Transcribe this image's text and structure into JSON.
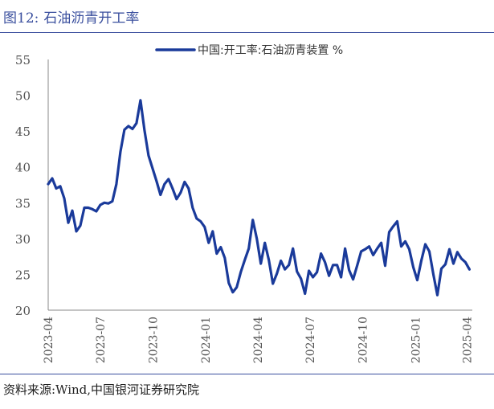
{
  "header": {
    "figure_label": "图12:",
    "figure_title": "石油沥青开工率"
  },
  "footer": {
    "source": "资料来源:Wind,中国银河证券研究院"
  },
  "colors": {
    "series": "#1a3a9a",
    "title": "#3a4f9e",
    "axis_text": "#555555"
  },
  "chart_data": {
    "type": "line",
    "title": "",
    "xlabel": "",
    "ylabel": "",
    "ylim": [
      20,
      55
    ],
    "yticks": [
      20,
      25,
      30,
      35,
      40,
      45,
      50,
      55
    ],
    "xlim": [
      "2023-04-01",
      "2025-04-10"
    ],
    "xticks": [
      "2023-04",
      "2023-07",
      "2023-10",
      "2024-01",
      "2024-04",
      "2024-07",
      "2024-10",
      "2025-01",
      "2025-04"
    ],
    "grid": false,
    "legend_position": "top-right",
    "series": [
      {
        "name": "中国:开工率:石油沥青装置 %",
        "x": [
          "2023-04-01",
          "2023-04-08",
          "2023-04-15",
          "2023-04-22",
          "2023-04-29",
          "2023-05-06",
          "2023-05-13",
          "2023-05-20",
          "2023-05-27",
          "2023-06-03",
          "2023-06-10",
          "2023-06-17",
          "2023-06-24",
          "2023-07-01",
          "2023-07-08",
          "2023-07-15",
          "2023-07-22",
          "2023-07-29",
          "2023-08-05",
          "2023-08-12",
          "2023-08-19",
          "2023-08-26",
          "2023-09-02",
          "2023-09-09",
          "2023-09-16",
          "2023-09-23",
          "2023-09-30",
          "2023-10-07",
          "2023-10-14",
          "2023-10-21",
          "2023-10-28",
          "2023-11-04",
          "2023-11-11",
          "2023-11-18",
          "2023-11-25",
          "2023-12-02",
          "2023-12-09",
          "2023-12-16",
          "2023-12-23",
          "2023-12-30",
          "2024-01-06",
          "2024-01-13",
          "2024-01-20",
          "2024-01-27",
          "2024-02-03",
          "2024-02-10",
          "2024-02-17",
          "2024-02-24",
          "2024-03-02",
          "2024-03-09",
          "2024-03-16",
          "2024-03-23",
          "2024-03-30",
          "2024-04-06",
          "2024-04-13",
          "2024-04-20",
          "2024-04-27",
          "2024-05-04",
          "2024-05-11",
          "2024-05-18",
          "2024-05-25",
          "2024-06-01",
          "2024-06-08",
          "2024-06-15",
          "2024-06-22",
          "2024-06-29",
          "2024-07-06",
          "2024-07-13",
          "2024-07-20",
          "2024-07-27",
          "2024-08-03",
          "2024-08-10",
          "2024-08-17",
          "2024-08-24",
          "2024-08-31",
          "2024-09-07",
          "2024-09-14",
          "2024-09-21",
          "2024-09-28",
          "2024-10-05",
          "2024-10-12",
          "2024-10-19",
          "2024-10-26",
          "2024-11-02",
          "2024-11-09",
          "2024-11-16",
          "2024-11-23",
          "2024-11-30",
          "2024-12-07",
          "2024-12-14",
          "2024-12-21",
          "2024-12-28",
          "2025-01-04",
          "2025-01-11",
          "2025-01-18",
          "2025-01-25",
          "2025-02-01",
          "2025-02-08",
          "2025-02-15",
          "2025-02-22",
          "2025-03-01",
          "2025-03-08",
          "2025-03-15",
          "2025-03-22",
          "2025-03-29",
          "2025-04-05"
        ],
        "values": [
          37.6,
          38.4,
          37.0,
          37.3,
          35.6,
          32.2,
          33.9,
          31.0,
          31.8,
          34.3,
          34.3,
          34.1,
          33.8,
          34.7,
          35.0,
          34.9,
          35.2,
          37.6,
          42.1,
          45.2,
          45.7,
          45.3,
          46.1,
          49.3,
          45.1,
          41.6,
          39.8,
          38.0,
          36.1,
          37.6,
          38.3,
          37.0,
          35.5,
          36.4,
          37.9,
          37.0,
          34.3,
          32.8,
          32.4,
          31.6,
          29.4,
          31.0,
          27.9,
          28.8,
          27.3,
          23.8,
          22.5,
          23.2,
          25.3,
          27.0,
          28.6,
          32.6,
          30.0,
          26.5,
          29.4,
          27.0,
          23.7,
          25.1,
          26.9,
          25.7,
          26.3,
          28.6,
          25.4,
          24.4,
          22.3,
          25.5,
          24.6,
          25.3,
          27.9,
          26.7,
          24.8,
          26.3,
          26.3,
          24.6,
          28.6,
          25.6,
          24.3,
          26.2,
          28.2,
          28.5,
          28.9,
          27.7,
          28.6,
          29.4,
          26.2,
          30.9,
          31.7,
          32.4,
          28.9,
          29.6,
          28.5,
          26.0,
          24.2,
          26.9,
          29.2,
          28.2,
          25.0,
          22.1,
          25.8,
          26.4,
          28.5,
          26.5,
          28.1,
          27.2,
          26.7,
          25.7
        ]
      }
    ]
  }
}
